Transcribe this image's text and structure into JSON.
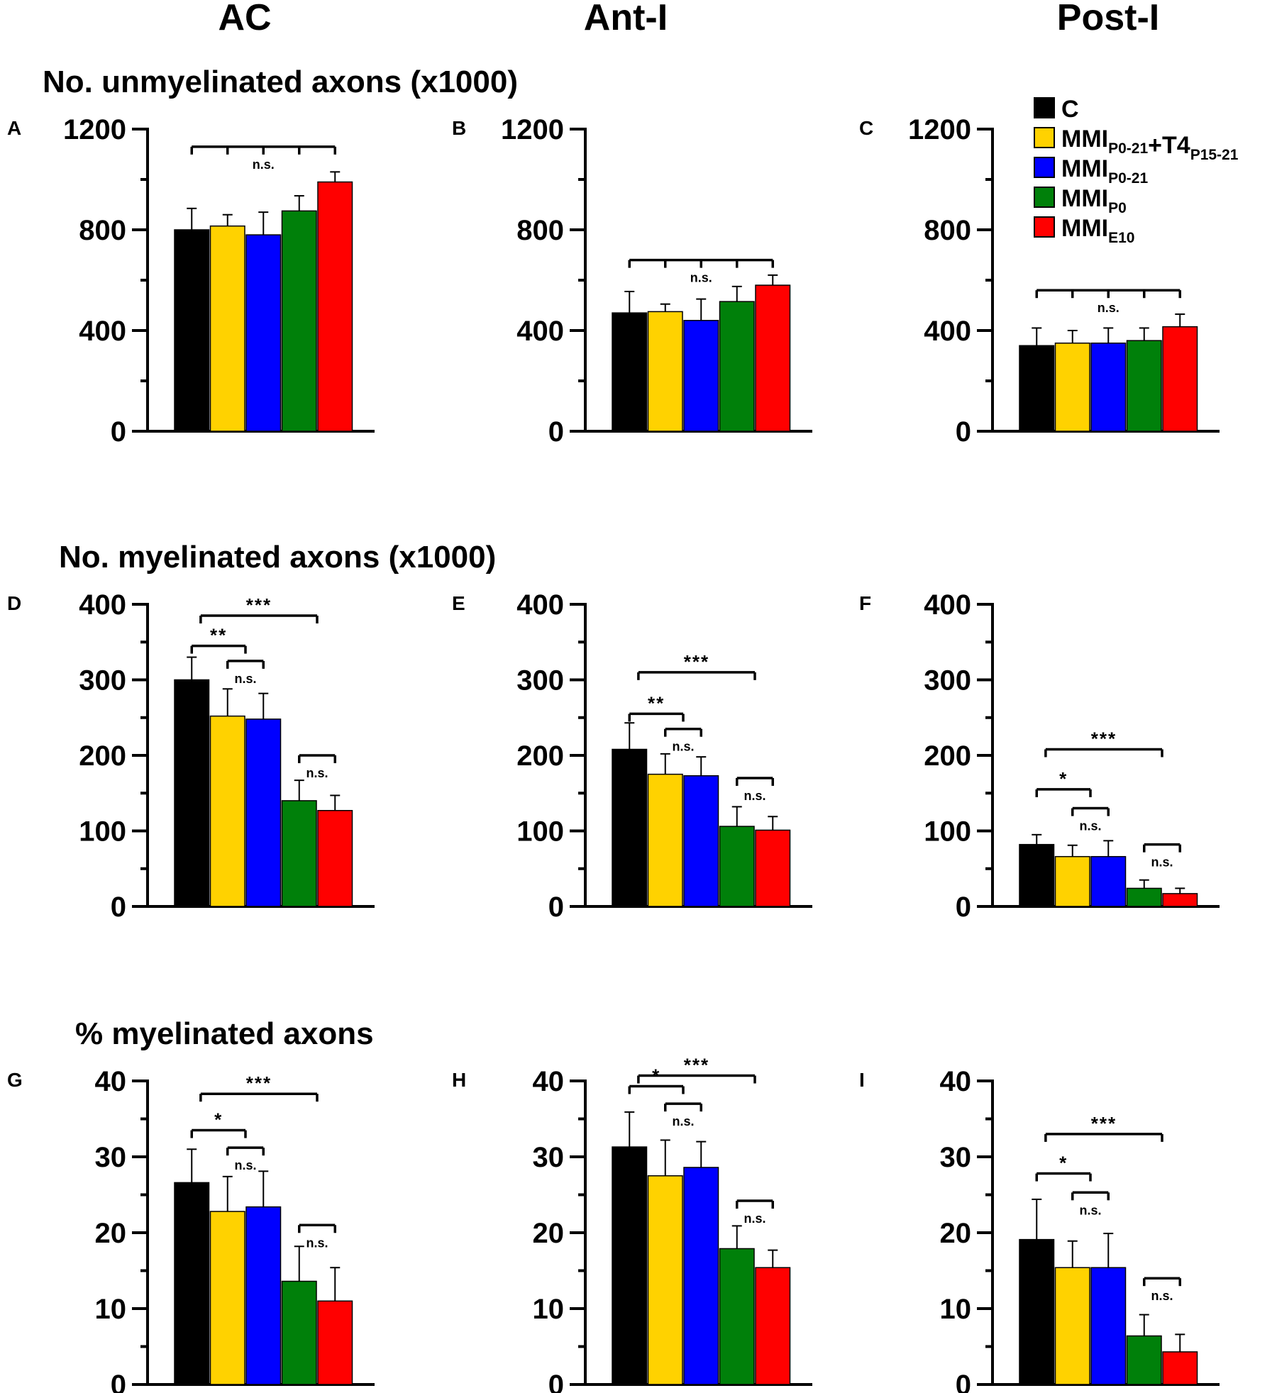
{
  "column_headers": [
    "AC",
    "Ant-I",
    "Post-I"
  ],
  "row_titles": [
    "No. unmyelinated axons (x1000)",
    "No. myelinated axons (x1000)",
    "% myelinated axons"
  ],
  "legend": [
    {
      "base": "C",
      "parts": [],
      "color": "#000000"
    },
    {
      "base": "MMI",
      "parts": [
        {
          "sub": "P0-21"
        },
        {
          "text": "+T4"
        },
        {
          "sub": "P15-21"
        }
      ],
      "color": "#FFD200"
    },
    {
      "base": "MMI",
      "parts": [
        {
          "sub": "P0-21"
        }
      ],
      "color": "#0000FF"
    },
    {
      "base": "MMI",
      "parts": [
        {
          "sub": "P0"
        }
      ],
      "color": "#00800A"
    },
    {
      "base": "MMI",
      "parts": [
        {
          "sub": "E10"
        }
      ],
      "color": "#FF0000"
    }
  ],
  "chart_data": [
    {
      "panel": "A",
      "type": "bar",
      "ylim": [
        0,
        1200
      ],
      "yticks": [
        0,
        400,
        800,
        1200
      ],
      "categories": [
        "C",
        "MMIP0-21+T4P15-21",
        "MMIP0-21",
        "MMIP0",
        "MMIE10"
      ],
      "values": [
        800,
        815,
        780,
        875,
        990
      ],
      "errors": [
        85,
        45,
        90,
        60,
        40
      ],
      "annotations": [
        {
          "label": "n.s.",
          "from": 0,
          "to": 4,
          "level": 1130,
          "ticks": [
            0,
            1,
            2,
            3,
            4
          ]
        }
      ]
    },
    {
      "panel": "B",
      "type": "bar",
      "ylim": [
        0,
        1200
      ],
      "yticks": [
        0,
        400,
        800,
        1200
      ],
      "categories": [
        "C",
        "MMIP0-21+T4P15-21",
        "MMIP0-21",
        "MMIP0",
        "MMIE10"
      ],
      "values": [
        470,
        475,
        440,
        515,
        580
      ],
      "errors": [
        85,
        30,
        85,
        60,
        40
      ],
      "annotations": [
        {
          "label": "n.s.",
          "from": 0,
          "to": 4,
          "level": 680,
          "ticks": [
            0,
            1,
            2,
            3,
            4
          ]
        }
      ]
    },
    {
      "panel": "C",
      "type": "bar",
      "ylim": [
        0,
        1200
      ],
      "yticks": [
        0,
        400,
        800,
        1200
      ],
      "categories": [
        "C",
        "MMIP0-21+T4P15-21",
        "MMIP0-21",
        "MMIP0",
        "MMIE10"
      ],
      "values": [
        340,
        350,
        350,
        360,
        415
      ],
      "errors": [
        70,
        50,
        60,
        50,
        50
      ],
      "annotations": [
        {
          "label": "n.s.",
          "from": 0,
          "to": 4,
          "level": 560,
          "ticks": [
            0,
            1,
            2,
            3,
            4
          ]
        }
      ]
    },
    {
      "panel": "D",
      "type": "bar",
      "ylim": [
        0,
        400
      ],
      "yticks": [
        0,
        100,
        200,
        300,
        400
      ],
      "categories": [
        "C",
        "MMIP0-21+T4P15-21",
        "MMIP0-21",
        "MMIP0",
        "MMIE10"
      ],
      "values": [
        300,
        252,
        248,
        140,
        127
      ],
      "errors": [
        30,
        36,
        34,
        27,
        20
      ],
      "annotations": [
        {
          "label": "***",
          "from": 0.25,
          "to": 3.5,
          "level": 385,
          "ticks": [
            0.25,
            3.5
          ]
        },
        {
          "label": "**",
          "from": 0.0,
          "to": 1.5,
          "level": 345,
          "ticks": [
            0.0,
            1.5
          ]
        },
        {
          "label": "n.s.",
          "from": 1.0,
          "to": 2.0,
          "level": 325,
          "ticks": [
            1.0,
            2.0
          ]
        },
        {
          "label": "n.s.",
          "from": 3.0,
          "to": 4.0,
          "level": 200,
          "ticks": [
            3.0,
            4.0
          ]
        }
      ]
    },
    {
      "panel": "E",
      "type": "bar",
      "ylim": [
        0,
        400
      ],
      "yticks": [
        0,
        100,
        200,
        300,
        400
      ],
      "categories": [
        "C",
        "MMIP0-21+T4P15-21",
        "MMIP0-21",
        "MMIP0",
        "MMIE10"
      ],
      "values": [
        208,
        175,
        173,
        106,
        101
      ],
      "errors": [
        35,
        27,
        25,
        26,
        18
      ],
      "annotations": [
        {
          "label": "***",
          "from": 0.25,
          "to": 3.5,
          "level": 310,
          "ticks": [
            0.25,
            3.5
          ]
        },
        {
          "label": "**",
          "from": 0.0,
          "to": 1.5,
          "level": 255,
          "ticks": [
            0.0,
            1.5
          ]
        },
        {
          "label": "n.s.",
          "from": 1.0,
          "to": 2.0,
          "level": 235,
          "ticks": [
            1.0,
            2.0
          ]
        },
        {
          "label": "n.s.",
          "from": 3.0,
          "to": 4.0,
          "level": 170,
          "ticks": [
            3.0,
            4.0
          ]
        }
      ]
    },
    {
      "panel": "F",
      "type": "bar",
      "ylim": [
        0,
        400
      ],
      "yticks": [
        0,
        100,
        200,
        300,
        400
      ],
      "categories": [
        "C",
        "MMIP0-21+T4P15-21",
        "MMIP0-21",
        "MMIP0",
        "MMIE10"
      ],
      "values": [
        82,
        66,
        66,
        24,
        17
      ],
      "errors": [
        13,
        15,
        21,
        11,
        7
      ],
      "annotations": [
        {
          "label": "***",
          "from": 0.25,
          "to": 3.5,
          "level": 208,
          "ticks": [
            0.25,
            3.5
          ]
        },
        {
          "label": "*",
          "from": 0.0,
          "to": 1.5,
          "level": 155,
          "ticks": [
            0.0,
            1.5
          ]
        },
        {
          "label": "n.s.",
          "from": 1.0,
          "to": 2.0,
          "level": 130,
          "ticks": [
            1.0,
            2.0
          ]
        },
        {
          "label": "n.s.",
          "from": 3.0,
          "to": 4.0,
          "level": 82,
          "ticks": [
            3.0,
            4.0
          ]
        }
      ]
    },
    {
      "panel": "G",
      "type": "bar",
      "ylim": [
        0,
        40
      ],
      "yticks": [
        0,
        10,
        20,
        30,
        40
      ],
      "categories": [
        "C",
        "MMIP0-21+T4P15-21",
        "MMIP0-21",
        "MMIP0",
        "MMIE10"
      ],
      "values": [
        26.6,
        22.8,
        23.4,
        13.6,
        11.0
      ],
      "errors": [
        4.4,
        4.6,
        4.7,
        4.6,
        4.4
      ],
      "annotations": [
        {
          "label": "***",
          "from": 0.25,
          "to": 3.5,
          "level": 38.3,
          "ticks": [
            0.25,
            3.5
          ]
        },
        {
          "label": "*",
          "from": 0.0,
          "to": 1.5,
          "level": 33.5,
          "ticks": [
            0.0,
            1.5
          ]
        },
        {
          "label": "n.s.",
          "from": 1.0,
          "to": 2.0,
          "level": 31.2,
          "ticks": [
            1.0,
            2.0
          ]
        },
        {
          "label": "n.s.",
          "from": 3.0,
          "to": 4.0,
          "level": 21.0,
          "ticks": [
            3.0,
            4.0
          ]
        }
      ]
    },
    {
      "panel": "H",
      "type": "bar",
      "ylim": [
        0,
        40
      ],
      "yticks": [
        0,
        10,
        20,
        30,
        40
      ],
      "categories": [
        "C",
        "MMIP0-21+T4P15-21",
        "MMIP0-21",
        "MMIP0",
        "MMIE10"
      ],
      "values": [
        31.3,
        27.5,
        28.6,
        17.9,
        15.4
      ],
      "errors": [
        4.6,
        4.7,
        3.4,
        3.0,
        2.3
      ],
      "annotations": [
        {
          "label": "***",
          "from": 0.25,
          "to": 3.5,
          "level": 40.7,
          "ticks": [
            0.25,
            3.5
          ]
        },
        {
          "label": "*",
          "from": 0.0,
          "to": 1.5,
          "level": 39.3,
          "ticks": [
            0.0,
            1.5
          ]
        },
        {
          "label": "n.s.",
          "from": 1.0,
          "to": 2.0,
          "level": 37.0,
          "ticks": [
            1.0,
            2.0
          ]
        },
        {
          "label": "n.s.",
          "from": 3.0,
          "to": 4.0,
          "level": 24.2,
          "ticks": [
            3.0,
            4.0
          ]
        }
      ]
    },
    {
      "panel": "I",
      "type": "bar",
      "ylim": [
        0,
        40
      ],
      "yticks": [
        0,
        10,
        20,
        30,
        40
      ],
      "categories": [
        "C",
        "MMIP0-21+T4P15-21",
        "MMIP0-21",
        "MMIP0",
        "MMIE10"
      ],
      "values": [
        19.1,
        15.4,
        15.4,
        6.4,
        4.3
      ],
      "errors": [
        5.3,
        3.5,
        4.5,
        2.8,
        2.3
      ],
      "annotations": [
        {
          "label": "***",
          "from": 0.25,
          "to": 3.5,
          "level": 33.0,
          "ticks": [
            0.25,
            3.5
          ]
        },
        {
          "label": "*",
          "from": 0.0,
          "to": 1.5,
          "level": 27.8,
          "ticks": [
            0.0,
            1.5
          ]
        },
        {
          "label": "n.s.",
          "from": 1.0,
          "to": 2.0,
          "level": 25.3,
          "ticks": [
            1.0,
            2.0
          ]
        },
        {
          "label": "n.s.",
          "from": 3.0,
          "to": 4.0,
          "level": 14.0,
          "ticks": [
            3.0,
            4.0
          ]
        }
      ]
    }
  ]
}
